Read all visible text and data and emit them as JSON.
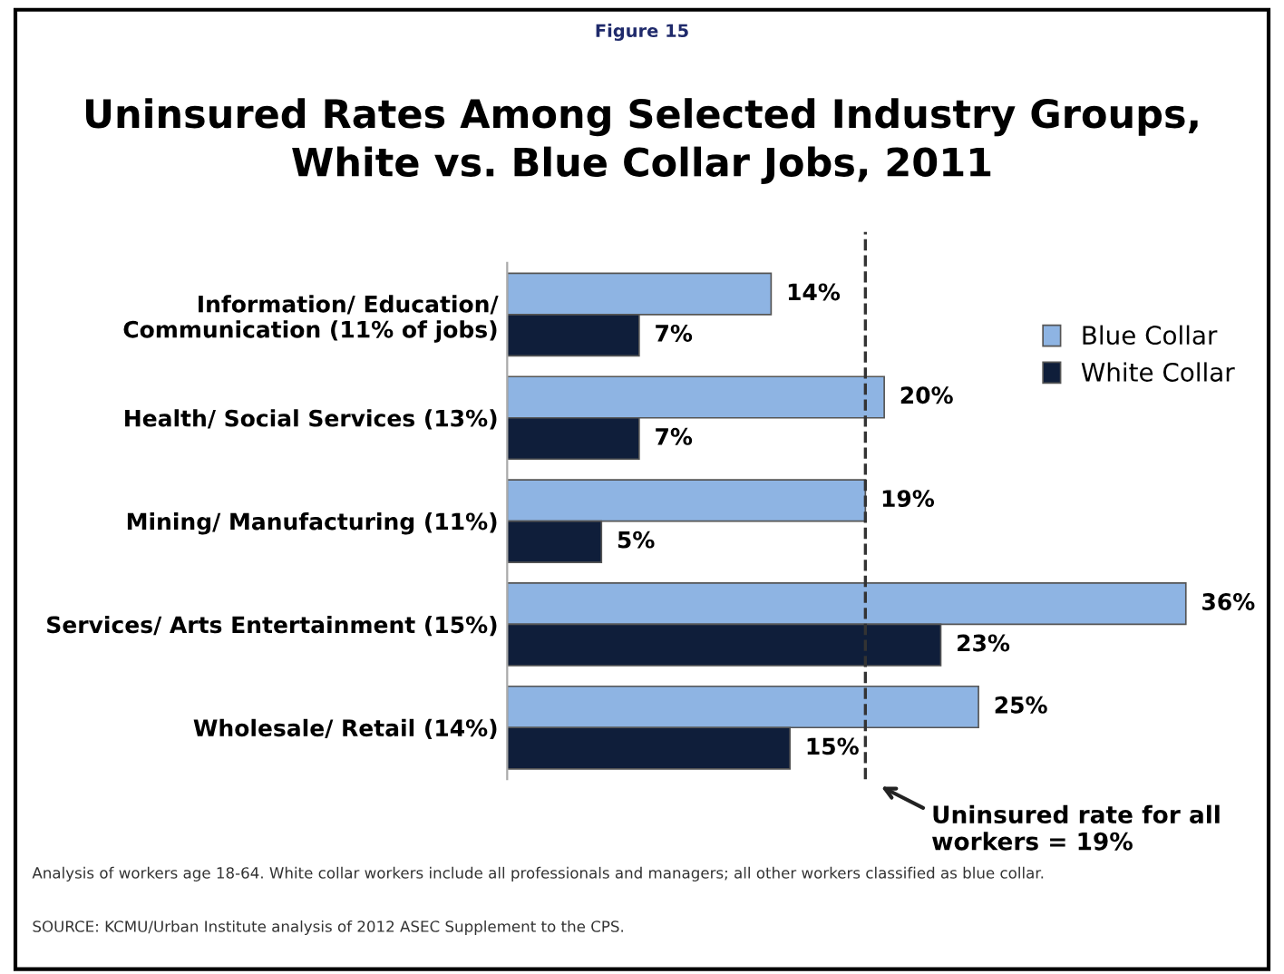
{
  "chart_data": {
    "type": "bar",
    "orientation": "horizontal",
    "subtitle": "Figure 15",
    "title": "Uninsured Rates Among Selected Industry Groups,\nWhite vs. Blue Collar Jobs, 2011",
    "categories": [
      "Information/ Education/\nCommunication (11% of jobs)",
      "Health/ Social Services (13%)",
      "Mining/ Manufacturing (11%)",
      "Services/ Arts Entertainment (15%)",
      "Wholesale/ Retail (14%)"
    ],
    "series": [
      {
        "name": "Blue Collar",
        "color": "#8eb4e3",
        "values": [
          14,
          20,
          19,
          36,
          25
        ],
        "value_labels": [
          "14%",
          "20%",
          "19%",
          "36%",
          "25%"
        ]
      },
      {
        "name": "White Collar",
        "color": "#0f1e3a",
        "values": [
          7,
          7,
          5,
          23,
          15
        ],
        "value_labels": [
          "7%",
          "7%",
          "5%",
          "23%",
          "15%"
        ]
      }
    ],
    "ref_lines": [
      {
        "axis": "x",
        "value": 19,
        "label": "Uninsured rate for all\nworkers = 19%",
        "color": "#333333",
        "line_style": "dashed"
      }
    ],
    "legend": "right",
    "grid": false,
    "annotations": [
      "Analysis of workers age 18-64. White collar workers include all professionals and managers; all other workers classified as blue collar.",
      "SOURCE: KCMU/Urban Institute analysis of 2012 ASEC Supplement to the CPS."
    ]
  }
}
